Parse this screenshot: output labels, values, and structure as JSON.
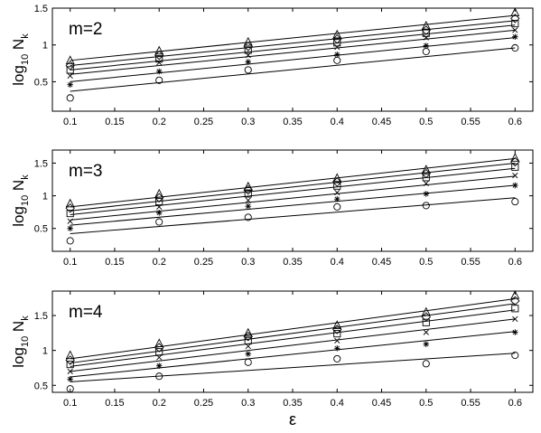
{
  "chart_data": [
    {
      "type": "scatter",
      "label": "m=2",
      "xlabel": "ε",
      "ylabel": "log10 N_k",
      "ylabel_parts": {
        "main": "log",
        "sub": "10",
        "sym": "N",
        "symsub": "k"
      },
      "xlim": [
        0.08,
        0.62
      ],
      "ylim": [
        0.1,
        1.5
      ],
      "x_ticks": [
        "0.1",
        "0.15",
        "0.2",
        "0.25",
        "0.3",
        "0.35",
        "0.4",
        "0.45",
        "0.5",
        "0.55",
        "0.6"
      ],
      "y_ticks": [
        "0.5",
        "1",
        "1.5"
      ],
      "grid": false,
      "markers_order": [
        "circle",
        "asterisk",
        "x",
        "square",
        "diamond",
        "triangle"
      ],
      "x": [
        0.1,
        0.2,
        0.3,
        0.4,
        0.5,
        0.6
      ],
      "series": [
        {
          "marker": "circle",
          "values": [
            0.28,
            0.52,
            0.66,
            0.79,
            0.91,
            0.96
          ],
          "fit": [
            0.37,
            0.96
          ]
        },
        {
          "marker": "asterisk",
          "values": [
            0.46,
            0.64,
            0.77,
            0.87,
            0.99,
            1.11
          ],
          "fit": [
            0.5,
            1.1
          ]
        },
        {
          "marker": "x",
          "values": [
            0.58,
            0.76,
            0.86,
            0.97,
            1.1,
            1.2
          ],
          "fit": [
            0.6,
            1.2
          ]
        },
        {
          "marker": "square",
          "values": [
            0.66,
            0.81,
            0.93,
            1.03,
            1.16,
            1.29
          ],
          "fit": [
            0.66,
            1.27
          ]
        },
        {
          "marker": "diamond",
          "values": [
            0.72,
            0.86,
            0.98,
            1.08,
            1.2,
            1.36
          ],
          "fit": [
            0.72,
            1.33
          ]
        },
        {
          "marker": "triangle",
          "values": [
            0.79,
            0.92,
            1.04,
            1.14,
            1.26,
            1.44
          ],
          "fit": [
            0.79,
            1.4
          ]
        }
      ]
    },
    {
      "type": "scatter",
      "label": "m=3",
      "xlabel": "ε",
      "ylabel": "log10 N_k",
      "ylabel_parts": {
        "main": "log",
        "sub": "10",
        "sym": "N",
        "symsub": "k"
      },
      "xlim": [
        0.08,
        0.62
      ],
      "ylim": [
        0.15,
        1.7
      ],
      "x_ticks": [
        "0.1",
        "0.15",
        "0.2",
        "0.25",
        "0.3",
        "0.35",
        "0.4",
        "0.45",
        "0.5",
        "0.55",
        "0.6"
      ],
      "y_ticks": [
        "0.5",
        "1",
        "1.5"
      ],
      "grid": false,
      "markers_order": [
        "circle",
        "asterisk",
        "x",
        "square",
        "diamond",
        "triangle"
      ],
      "x": [
        0.1,
        0.2,
        0.3,
        0.4,
        0.5,
        0.6
      ],
      "series": [
        {
          "marker": "circle",
          "values": [
            0.31,
            0.6,
            0.67,
            0.83,
            0.85,
            0.91
          ],
          "fit": [
            0.42,
            0.97
          ]
        },
        {
          "marker": "asterisk",
          "values": [
            0.5,
            0.74,
            0.84,
            0.95,
            1.03,
            1.16
          ],
          "fit": [
            0.55,
            1.16
          ]
        },
        {
          "marker": "x",
          "values": [
            0.61,
            0.83,
            0.93,
            1.05,
            1.19,
            1.31
          ],
          "fit": [
            0.63,
            1.3
          ]
        },
        {
          "marker": "square",
          "values": [
            0.73,
            0.91,
            1.03,
            1.15,
            1.28,
            1.44
          ],
          "fit": [
            0.71,
            1.42
          ]
        },
        {
          "marker": "diamond",
          "values": [
            0.81,
            0.97,
            1.09,
            1.21,
            1.34,
            1.52
          ],
          "fit": [
            0.77,
            1.5
          ]
        },
        {
          "marker": "triangle",
          "values": [
            0.88,
            1.03,
            1.14,
            1.27,
            1.4,
            1.58
          ],
          "fit": [
            0.83,
            1.57
          ]
        }
      ]
    },
    {
      "type": "scatter",
      "label": "m=4",
      "xlabel": "ε",
      "ylabel": "log10 N_k",
      "ylabel_parts": {
        "main": "log",
        "sub": "10",
        "sym": "N",
        "symsub": "k"
      },
      "xlim": [
        0.08,
        0.62
      ],
      "ylim": [
        0.4,
        1.85
      ],
      "x_ticks": [
        "0.1",
        "0.15",
        "0.2",
        "0.25",
        "0.3",
        "0.35",
        "0.4",
        "0.45",
        "0.5",
        "0.55",
        "0.6"
      ],
      "y_ticks": [
        "0.5",
        "1",
        "1.5"
      ],
      "grid": false,
      "markers_order": [
        "circle",
        "asterisk",
        "x",
        "square",
        "diamond",
        "triangle"
      ],
      "x": [
        0.1,
        0.2,
        0.3,
        0.4,
        0.5,
        0.6
      ],
      "series": [
        {
          "marker": "circle",
          "values": [
            0.45,
            0.63,
            0.83,
            0.88,
            0.81,
            0.93
          ],
          "fit": [
            0.55,
            0.96
          ]
        },
        {
          "marker": "asterisk",
          "values": [
            0.59,
            0.78,
            0.95,
            1.03,
            1.09,
            1.26
          ],
          "fit": [
            0.62,
            1.27
          ]
        },
        {
          "marker": "x",
          "values": [
            0.7,
            0.9,
            1.06,
            1.14,
            1.26,
            1.45
          ],
          "fit": [
            0.7,
            1.45
          ]
        },
        {
          "marker": "square",
          "values": [
            0.8,
            0.98,
            1.14,
            1.24,
            1.4,
            1.6
          ],
          "fit": [
            0.77,
            1.58
          ]
        },
        {
          "marker": "diamond",
          "values": [
            0.86,
            1.04,
            1.2,
            1.3,
            1.48,
            1.71
          ],
          "fit": [
            0.82,
            1.67
          ]
        },
        {
          "marker": "triangle",
          "values": [
            0.93,
            1.1,
            1.25,
            1.36,
            1.55,
            1.79
          ],
          "fit": [
            0.88,
            1.74
          ]
        }
      ]
    }
  ]
}
